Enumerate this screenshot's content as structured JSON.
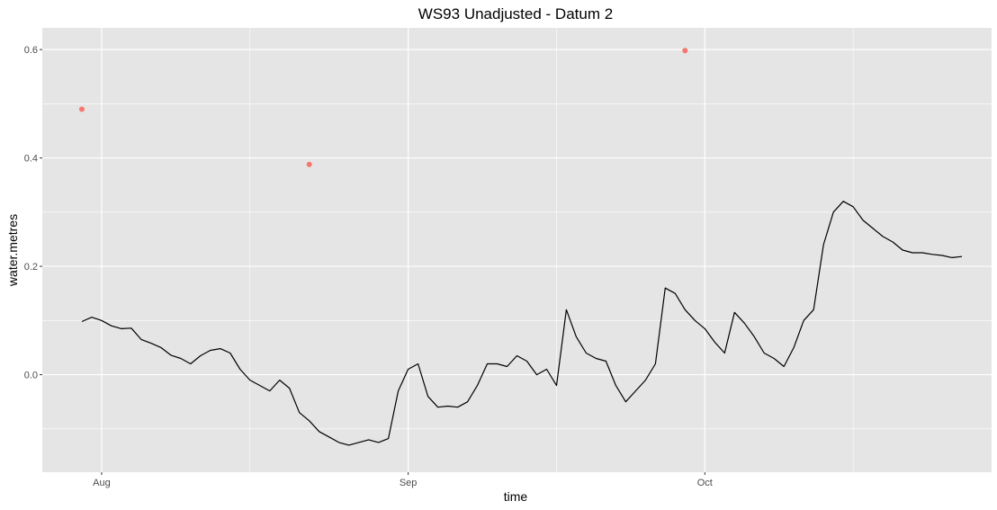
{
  "chart_data": {
    "type": "line",
    "title": "WS93 Unadjusted - Datum 2",
    "xlabel": "time",
    "ylabel": "water.metres",
    "x_type": "date",
    "xlim": [
      "2016-07-26",
      "2016-10-30"
    ],
    "ylim": [
      -0.18,
      0.64
    ],
    "x_ticks": [
      {
        "date": "2016-08-01",
        "label": "Aug"
      },
      {
        "date": "2016-09-01",
        "label": "Sep"
      },
      {
        "date": "2016-10-01",
        "label": "Oct"
      }
    ],
    "x_minor_ticks": [
      "2016-08-16",
      "2016-09-16",
      "2016-10-16"
    ],
    "y_ticks": [
      {
        "value": 0.0,
        "label": "0.0"
      },
      {
        "value": 0.2,
        "label": "0.2"
      },
      {
        "value": 0.4,
        "label": "0.4"
      },
      {
        "value": 0.6,
        "label": "0.6"
      }
    ],
    "y_minor_ticks": [
      -0.1,
      0.1,
      0.3,
      0.5
    ],
    "grid": true,
    "panel_color": "#e5e5e5",
    "grid_color": "#ffffff",
    "series": [
      {
        "kind": "line",
        "color": "#000000",
        "points": [
          [
            "2016-07-30",
            0.098
          ],
          [
            "2016-07-31",
            0.106
          ],
          [
            "2016-08-01",
            0.1
          ],
          [
            "2016-08-02",
            0.09
          ],
          [
            "2016-08-03",
            0.085
          ],
          [
            "2016-08-04",
            0.086
          ],
          [
            "2016-08-05",
            0.065
          ],
          [
            "2016-08-06",
            0.058
          ],
          [
            "2016-08-07",
            0.05
          ],
          [
            "2016-08-08",
            0.036
          ],
          [
            "2016-08-09",
            0.03
          ],
          [
            "2016-08-10",
            0.02
          ],
          [
            "2016-08-11",
            0.035
          ],
          [
            "2016-08-12",
            0.045
          ],
          [
            "2016-08-13",
            0.048
          ],
          [
            "2016-08-14",
            0.04
          ],
          [
            "2016-08-15",
            0.01
          ],
          [
            "2016-08-16",
            -0.01
          ],
          [
            "2016-08-17",
            -0.02
          ],
          [
            "2016-08-18",
            -0.03
          ],
          [
            "2016-08-19",
            -0.01
          ],
          [
            "2016-08-20",
            -0.025
          ],
          [
            "2016-08-21",
            -0.07
          ],
          [
            "2016-08-22",
            -0.085
          ],
          [
            "2016-08-23",
            -0.105
          ],
          [
            "2016-08-24",
            -0.115
          ],
          [
            "2016-08-25",
            -0.125
          ],
          [
            "2016-08-26",
            -0.13
          ],
          [
            "2016-08-27",
            -0.125
          ],
          [
            "2016-08-28",
            -0.12
          ],
          [
            "2016-08-29",
            -0.125
          ],
          [
            "2016-08-30",
            -0.118
          ],
          [
            "2016-08-31",
            -0.03
          ],
          [
            "2016-09-01",
            0.01
          ],
          [
            "2016-09-02",
            0.02
          ],
          [
            "2016-09-03",
            -0.04
          ],
          [
            "2016-09-04",
            -0.06
          ],
          [
            "2016-09-05",
            -0.058
          ],
          [
            "2016-09-06",
            -0.06
          ],
          [
            "2016-09-07",
            -0.05
          ],
          [
            "2016-09-08",
            -0.02
          ],
          [
            "2016-09-09",
            0.02
          ],
          [
            "2016-09-10",
            0.02
          ],
          [
            "2016-09-11",
            0.015
          ],
          [
            "2016-09-12",
            0.035
          ],
          [
            "2016-09-13",
            0.025
          ],
          [
            "2016-09-14",
            0.0
          ],
          [
            "2016-09-15",
            0.01
          ],
          [
            "2016-09-16",
            -0.02
          ],
          [
            "2016-09-17",
            0.12
          ],
          [
            "2016-09-18",
            0.07
          ],
          [
            "2016-09-19",
            0.04
          ],
          [
            "2016-09-20",
            0.03
          ],
          [
            "2016-09-21",
            0.025
          ],
          [
            "2016-09-22",
            -0.02
          ],
          [
            "2016-09-23",
            -0.05
          ],
          [
            "2016-09-24",
            -0.03
          ],
          [
            "2016-09-25",
            -0.01
          ],
          [
            "2016-09-26",
            0.02
          ],
          [
            "2016-09-27",
            0.16
          ],
          [
            "2016-09-28",
            0.15
          ],
          [
            "2016-09-29",
            0.12
          ],
          [
            "2016-09-30",
            0.1
          ],
          [
            "2016-10-01",
            0.085
          ],
          [
            "2016-10-02",
            0.06
          ],
          [
            "2016-10-03",
            0.04
          ],
          [
            "2016-10-04",
            0.115
          ],
          [
            "2016-10-05",
            0.095
          ],
          [
            "2016-10-06",
            0.07
          ],
          [
            "2016-10-07",
            0.04
          ],
          [
            "2016-10-08",
            0.03
          ],
          [
            "2016-10-09",
            0.015
          ],
          [
            "2016-10-10",
            0.05
          ],
          [
            "2016-10-11",
            0.1
          ],
          [
            "2016-10-12",
            0.12
          ],
          [
            "2016-10-13",
            0.24
          ],
          [
            "2016-10-14",
            0.3
          ],
          [
            "2016-10-15",
            0.32
          ],
          [
            "2016-10-16",
            0.31
          ],
          [
            "2016-10-17",
            0.285
          ],
          [
            "2016-10-18",
            0.27
          ],
          [
            "2016-10-19",
            0.255
          ],
          [
            "2016-10-20",
            0.245
          ],
          [
            "2016-10-21",
            0.23
          ],
          [
            "2016-10-22",
            0.225
          ],
          [
            "2016-10-23",
            0.225
          ],
          [
            "2016-10-24",
            0.222
          ],
          [
            "2016-10-25",
            0.22
          ],
          [
            "2016-10-26",
            0.216
          ],
          [
            "2016-10-27",
            0.218
          ]
        ]
      },
      {
        "kind": "points",
        "color": "#f8766d",
        "points": [
          [
            "2016-07-30",
            0.49
          ],
          [
            "2016-08-22",
            0.388
          ],
          [
            "2016-09-29",
            0.598
          ]
        ]
      }
    ]
  }
}
